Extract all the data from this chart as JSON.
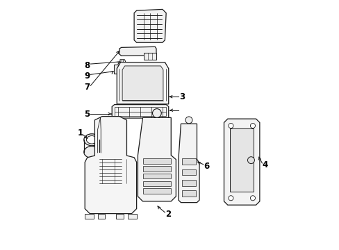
{
  "bg_color": "#ffffff",
  "line_color": "#1a1a1a",
  "figsize": [
    4.89,
    3.6
  ],
  "dpi": 100,
  "label_positions": {
    "1": [
      0.135,
      0.415,
      0.155,
      0.375
    ],
    "2": [
      0.495,
      0.085,
      0.46,
      0.12
    ],
    "3": [
      0.535,
      0.575,
      0.49,
      0.575
    ],
    "4": [
      0.885,
      0.34,
      0.855,
      0.38
    ],
    "5": [
      0.175,
      0.54,
      0.255,
      0.54
    ],
    "6": [
      0.635,
      0.335,
      0.6,
      0.35
    ],
    "7": [
      0.175,
      0.655,
      0.275,
      0.655
    ],
    "8": [
      0.175,
      0.745,
      0.255,
      0.745
    ],
    "9": [
      0.175,
      0.7,
      0.255,
      0.7
    ]
  }
}
